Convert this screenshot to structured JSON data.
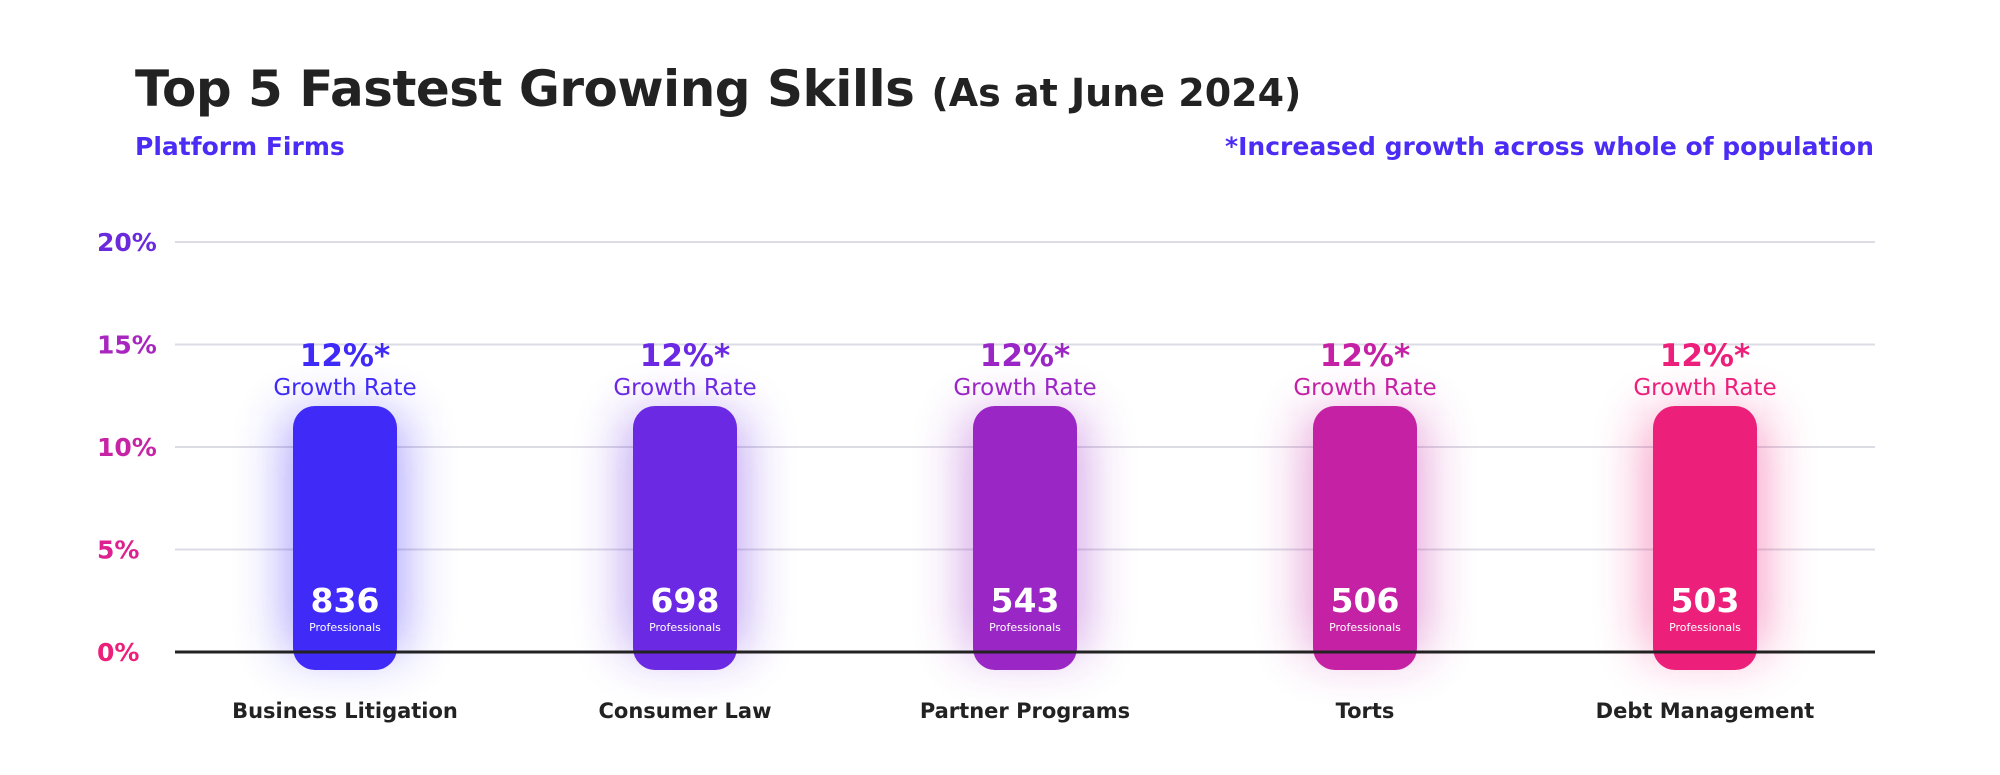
{
  "title": "Top 5 Fastest Growing Skills",
  "title_suffix": "(As at June 2024)",
  "subtitle_left": "Platform Firms",
  "subtitle_right": "*Increased growth across whole of population",
  "chart_data": {
    "type": "bar",
    "categories": [
      "Business Litigation",
      "Consumer Law",
      "Partner Programs",
      "Torts",
      "Debt Management"
    ],
    "values": [
      12,
      12,
      12,
      12,
      12
    ],
    "growth_labels": [
      "12%*",
      "12%*",
      "12%*",
      "12%*",
      "12%*"
    ],
    "growth_caption": "Growth Rate",
    "professionals": [
      "836",
      "698",
      "543",
      "506",
      "503"
    ],
    "professionals_caption": "Professionals",
    "y_ticks": [
      "0%",
      "5%",
      "10%",
      "15%",
      "20%"
    ],
    "ylim": [
      0,
      20
    ],
    "grid": true,
    "bar_colors": [
      "#3f2af8",
      "#6b29e3",
      "#9a26c6",
      "#c521a4",
      "#ec1f7a"
    ],
    "tick_colors": [
      "#ec1f7a",
      "#dd2190",
      "#c723a5",
      "#a925c0",
      "#6b2bdd"
    ],
    "accent": "#4a2cf5"
  }
}
